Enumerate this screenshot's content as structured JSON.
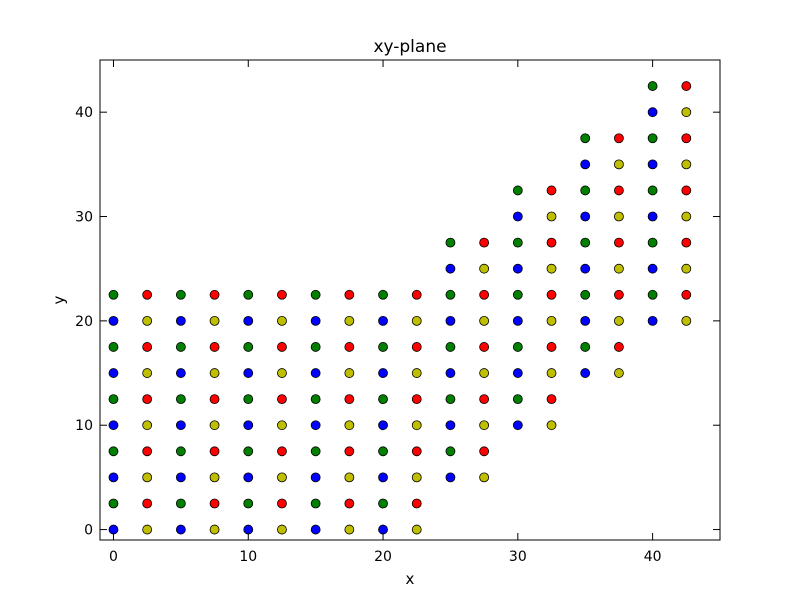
{
  "chart_data": {
    "type": "scatter",
    "title": "xy-plane",
    "xlabel": "x",
    "ylabel": "y",
    "xlim": [
      -1,
      45
    ],
    "ylim": [
      -1,
      45
    ],
    "xticks": [
      0,
      10,
      20,
      30,
      40
    ],
    "yticks": [
      0,
      10,
      20,
      30,
      40
    ],
    "grid": false,
    "colors": {
      "blue": "#0000ff",
      "yellow": "#bfbf00",
      "green": "#007f00",
      "red": "#ff0000"
    },
    "series": [
      {
        "color": "blue",
        "points": [
          [
            0,
            0
          ],
          [
            0,
            5
          ],
          [
            0,
            10
          ],
          [
            0,
            15
          ],
          [
            0,
            20
          ],
          [
            2.5,
            0
          ],
          [
            2.5,
            5
          ],
          [
            2.5,
            10
          ],
          [
            2.5,
            15
          ],
          [
            2.5,
            20
          ]
        ]
      },
      {
        "color": "green",
        "points": [
          [
            0,
            2.5
          ],
          [
            0,
            7.5
          ],
          [
            0,
            12.5
          ],
          [
            0,
            17.5
          ],
          [
            0,
            22.5
          ],
          [
            2.5,
            2.5
          ],
          [
            2.5,
            7.5
          ],
          [
            2.5,
            12.5
          ],
          [
            2.5,
            17.5
          ],
          [
            2.5,
            22.5
          ]
        ]
      }
    ],
    "grid_blocks": [
      {
        "x_start": 0,
        "y_start": 0
      },
      {
        "x_start": 5,
        "y_start": 0
      },
      {
        "x_start": 10,
        "y_start": 0
      },
      {
        "x_start": 15,
        "y_start": 0
      },
      {
        "x_start": 20,
        "y_start": 0
      },
      {
        "x_start": 25,
        "y_start": 5
      },
      {
        "x_start": 30,
        "y_start": 10
      },
      {
        "x_start": 35,
        "y_start": 15
      },
      {
        "x_start": 40,
        "y_start": 20
      }
    ],
    "block_pattern": {
      "rows": 10,
      "x_offsets": [
        0,
        2.5
      ],
      "y_step": 2.5,
      "even_row_colors": [
        "blue",
        "yellow"
      ],
      "odd_row_colors": [
        "green",
        "red"
      ]
    }
  }
}
